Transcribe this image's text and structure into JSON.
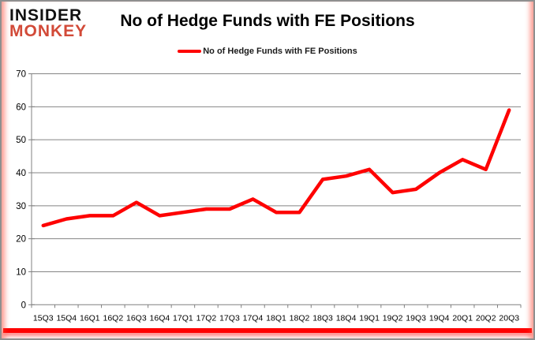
{
  "logo": {
    "line1": "INSIDER",
    "line2": "MONKEY"
  },
  "header": {
    "title": "No of Hedge Funds with FE Positions"
  },
  "legend": {
    "label": "No of Hedge Funds with FE Positions",
    "swatch_color": "#fe0000"
  },
  "colors": {
    "series_red": "#fe0000",
    "logo_red": "#d24a38",
    "grid_gray": "#848484",
    "axis_gray": "#808080",
    "label_black": "#000000",
    "accent_bottom_bar": "#fe0000"
  },
  "chart_data": {
    "type": "line",
    "title": "No of Hedge Funds with FE Positions",
    "categories": [
      "15Q3",
      "15Q4",
      "16Q1",
      "16Q2",
      "16Q3",
      "16Q4",
      "17Q1",
      "17Q2",
      "17Q3",
      "17Q4",
      "18Q1",
      "18Q2",
      "18Q3",
      "18Q4",
      "19Q1",
      "19Q2",
      "19Q3",
      "19Q4",
      "20Q1",
      "20Q2",
      "20Q3"
    ],
    "series": [
      {
        "name": "No of Hedge Funds with FE Positions",
        "color": "#fe0000",
        "values": [
          24,
          26,
          27,
          27,
          31,
          27,
          28,
          29,
          29,
          32,
          28,
          28,
          38,
          39,
          41,
          34,
          35,
          40,
          44,
          41,
          59
        ]
      }
    ],
    "xlabel": "",
    "ylabel": "",
    "ylim": [
      0,
      70
    ],
    "ytick_step": 10,
    "grid": true,
    "legend_position": "top-center"
  }
}
